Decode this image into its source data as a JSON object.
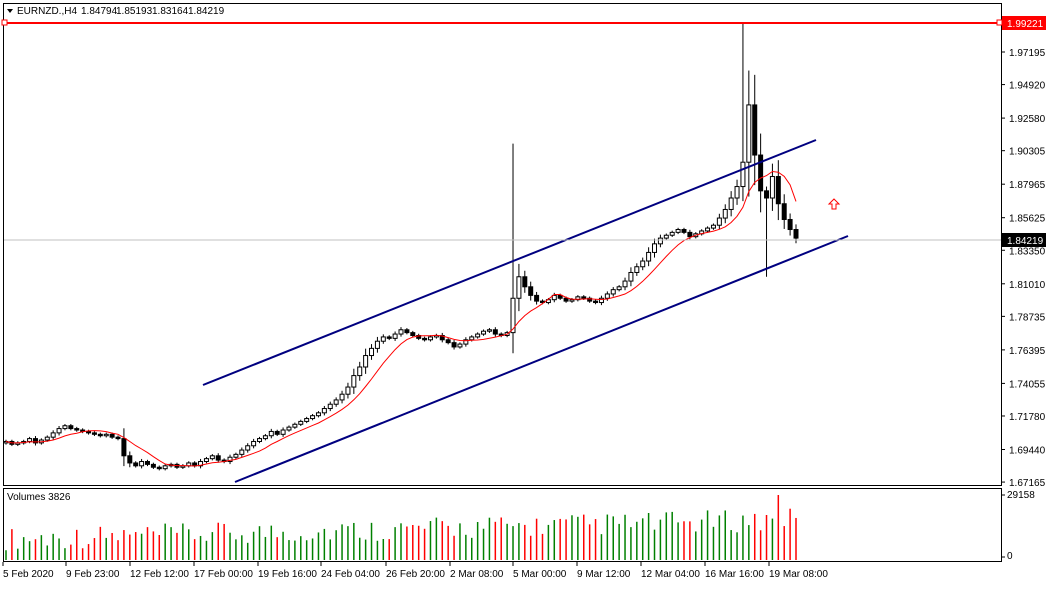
{
  "header": {
    "symbol": "EURNZD.,H4",
    "open": "1.84794",
    "high": "1.85193",
    "low": "1.83164",
    "close": "1.84219"
  },
  "price_axis": {
    "labels": [
      "1.97195",
      "1.94920",
      "1.92580",
      "1.90305",
      "1.87965",
      "1.85625",
      "1.83350",
      "1.81010",
      "1.78735",
      "1.76395",
      "1.74055",
      "1.71780",
      "1.69440",
      "1.67165"
    ],
    "current_price": "1.84219",
    "alert_price": "1.99221"
  },
  "time_axis": {
    "labels": [
      "5 Feb 2020",
      "9 Feb 23:00",
      "12 Feb 12:00",
      "17 Feb 00:00",
      "19 Feb 16:00",
      "24 Feb 04:00",
      "26 Feb 20:00",
      "2 Mar 08:00",
      "5 Mar 00:00",
      "9 Mar 12:00",
      "12 Mar 04:00",
      "16 Mar 16:00",
      "19 Mar 08:00"
    ]
  },
  "volume_panel": {
    "title": "Volumes 3826",
    "max_label": "29158",
    "min_label": "0"
  },
  "colors": {
    "background": "#ffffff",
    "axis": "#000000",
    "grid": "#c0c0c0",
    "candle": "#000000",
    "channel": "#000080",
    "moving_average": "#ff0000",
    "alert_line": "#ff0000",
    "volume_up": "#008000",
    "volume_down": "#ff0000"
  },
  "chart_data": {
    "type": "candlestick",
    "symbol": "EURNZD",
    "timeframe": "H4",
    "ylim": [
      1.6717,
      1.9922
    ],
    "close_series": [
      1.7,
      1.698,
      1.699,
      1.7,
      1.702,
      1.699,
      1.701,
      1.703,
      1.706,
      1.709,
      1.711,
      1.709,
      1.708,
      1.707,
      1.706,
      1.705,
      1.704,
      1.705,
      1.703,
      1.702,
      1.69,
      1.685,
      1.683,
      1.686,
      1.684,
      1.682,
      1.681,
      1.683,
      1.684,
      1.682,
      1.683,
      1.685,
      1.683,
      1.686,
      1.688,
      1.69,
      1.687,
      1.686,
      1.689,
      1.691,
      1.694,
      1.697,
      1.7,
      1.702,
      1.704,
      1.707,
      1.705,
      1.708,
      1.71,
      1.712,
      1.714,
      1.716,
      1.718,
      1.72,
      1.723,
      1.726,
      1.729,
      1.733,
      1.738,
      1.746,
      1.752,
      1.76,
      1.765,
      1.77,
      1.773,
      1.772,
      1.775,
      1.778,
      1.776,
      1.774,
      1.772,
      1.771,
      1.773,
      1.774,
      1.771,
      1.769,
      1.766,
      1.768,
      1.771,
      1.773,
      1.775,
      1.777,
      1.778,
      1.775,
      1.774,
      1.776,
      1.8,
      1.815,
      1.808,
      1.802,
      1.798,
      1.797,
      1.799,
      1.802,
      1.8,
      1.798,
      1.799,
      1.801,
      1.8,
      1.798,
      1.797,
      1.8,
      1.803,
      1.806,
      1.808,
      1.812,
      1.818,
      1.822,
      1.826,
      1.832,
      1.838,
      1.842,
      1.844,
      1.846,
      1.848,
      1.846,
      1.843,
      1.845,
      1.847,
      1.849,
      1.851,
      1.856,
      1.862,
      1.87,
      1.878,
      1.895,
      1.935,
      1.9,
      1.875,
      1.87,
      1.885,
      1.866,
      1.855,
      1.848,
      1.842
    ]
  }
}
